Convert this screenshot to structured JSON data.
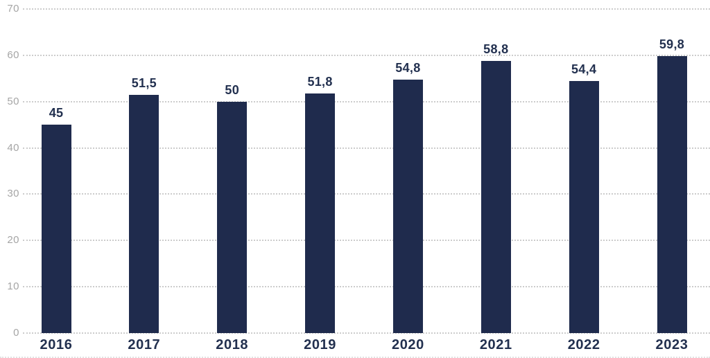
{
  "chart_data": {
    "type": "bar",
    "title": "",
    "xlabel": "",
    "ylabel": "",
    "categories": [
      "2016",
      "2017",
      "2018",
      "2019",
      "2020",
      "2021",
      "2022",
      "2023"
    ],
    "values": [
      45,
      51.5,
      50,
      51.8,
      54.8,
      58.8,
      54.4,
      59.8
    ],
    "value_labels": [
      "45",
      "51,5",
      "50",
      "51,8",
      "54,8",
      "58,8",
      "54,4",
      "59,8"
    ],
    "ylim": [
      0,
      70
    ],
    "yticks": [
      0,
      10,
      20,
      30,
      40,
      50,
      60,
      70
    ],
    "ytick_labels": [
      "0",
      "10",
      "20",
      "30",
      "40",
      "50",
      "60",
      "70"
    ],
    "grid": "horizontal-dotted",
    "legend": "none",
    "colors": {
      "bar": "#1f2b4d",
      "value_label": "#22304f",
      "category_label": "#22304f",
      "ytick_label": "#a5a5a5",
      "gridline": "#cccccc",
      "background": "#ffffff"
    }
  }
}
